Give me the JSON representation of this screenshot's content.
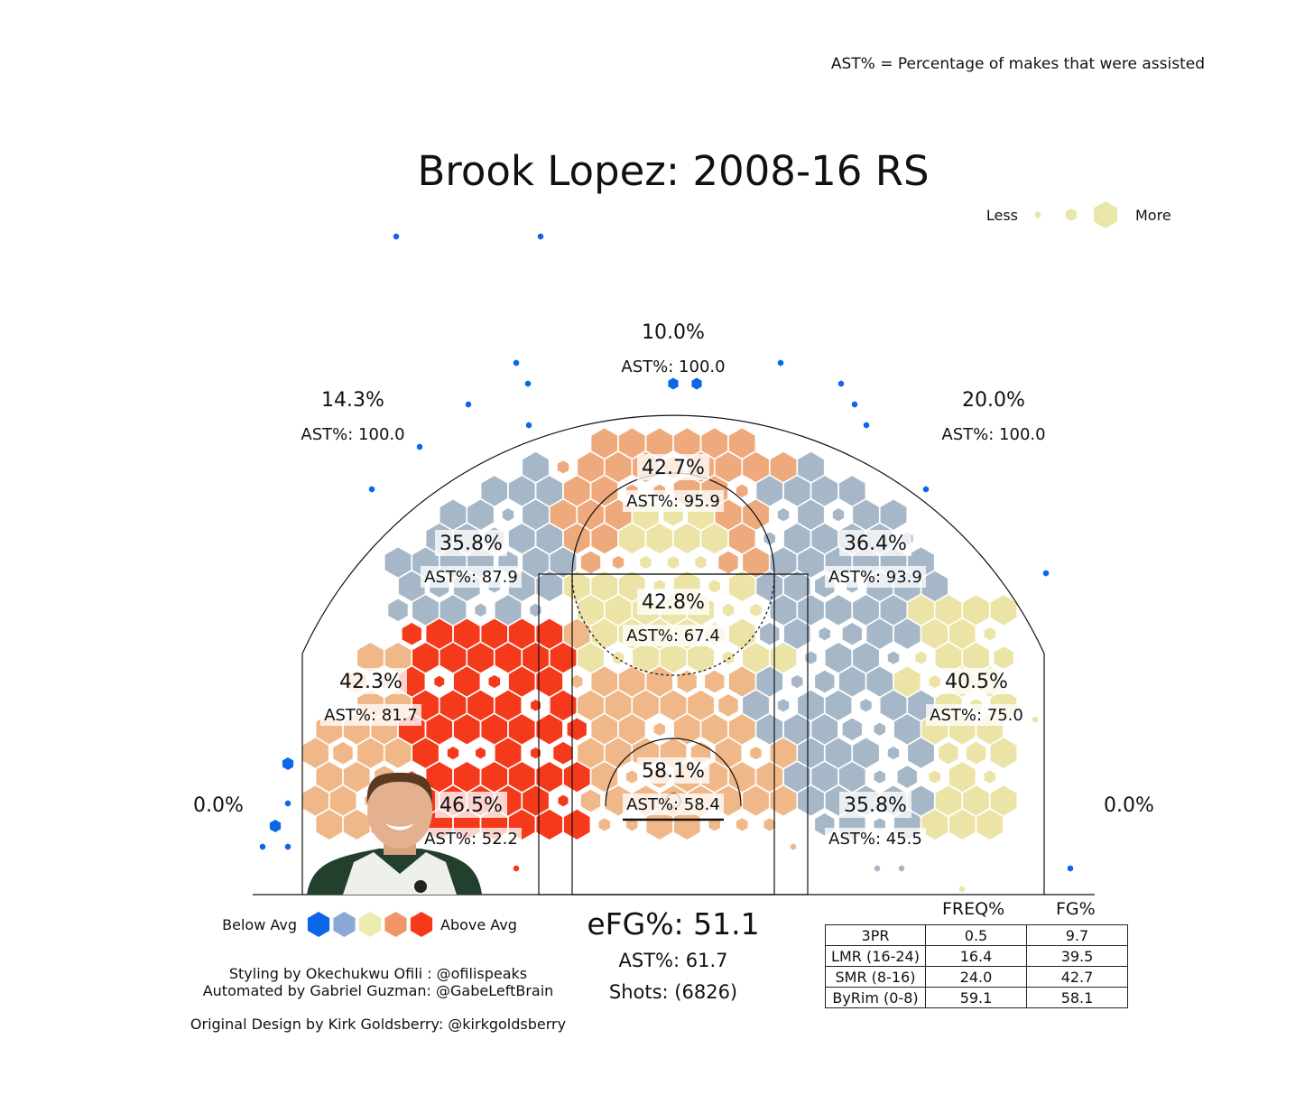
{
  "note": "AST% = Percentage of makes that were assisted",
  "title": "Brook Lopez: 2008-16 RS",
  "size_legend": {
    "less": "Less",
    "more": "More"
  },
  "color_legend": {
    "below": "Below Avg",
    "above": "Above Avg",
    "colors": [
      "#0b66e8",
      "#8aa8d6",
      "#ecebb0",
      "#f0956a",
      "#f53a1c"
    ]
  },
  "chart_data": {
    "type": "heatmap",
    "description_source": "hexbin shot chart with zone labels",
    "zones": [
      {
        "id": "corner3-left",
        "fg": "0.0%",
        "ast": ""
      },
      {
        "id": "wing3-left",
        "fg": "14.3%",
        "ast": "AST%: 100.0"
      },
      {
        "id": "top3",
        "fg": "10.0%",
        "ast": "AST%: 100.0"
      },
      {
        "id": "wing3-right",
        "fg": "20.0%",
        "ast": "AST%: 100.0"
      },
      {
        "id": "corner3-right",
        "fg": "0.0%",
        "ast": ""
      },
      {
        "id": "long-top",
        "fg": "42.7%",
        "ast": "AST%: 95.9"
      },
      {
        "id": "long-left-wing",
        "fg": "35.8%",
        "ast": "AST%: 87.9"
      },
      {
        "id": "long-right-wing",
        "fg": "36.4%",
        "ast": "AST%: 93.9"
      },
      {
        "id": "mid-center",
        "fg": "42.8%",
        "ast": "AST%: 67.4"
      },
      {
        "id": "long-left-base",
        "fg": "42.3%",
        "ast": "AST%: 81.7"
      },
      {
        "id": "long-right-base",
        "fg": "40.5%",
        "ast": "AST%: 75.0"
      },
      {
        "id": "rim",
        "fg": "58.1%",
        "ast": "AST%: 58.4"
      },
      {
        "id": "short-left-base",
        "fg": "46.5%",
        "ast": "AST%: 52.2"
      },
      {
        "id": "short-right-base",
        "fg": "35.8%",
        "ast": "AST%: 45.5"
      }
    ]
  },
  "summary": {
    "efg": "eFG%: 51.1",
    "ast": "AST%: 61.7",
    "shots": "Shots: (6826)"
  },
  "credits": {
    "line1": "Styling by Okechukwu Ofili : @ofilispeaks",
    "line2": "Automated by Gabriel Guzman: @GabeLeftBrain",
    "line3": "Original Design by Kirk Goldsberry: @kirkgoldsberry"
  },
  "table": {
    "headers": [
      "FREQ%",
      "FG%"
    ],
    "rows": [
      {
        "zone": "3PR",
        "freq": "0.5",
        "fg": "9.7"
      },
      {
        "zone": "LMR (16-24)",
        "freq": "16.4",
        "fg": "39.5"
      },
      {
        "zone": "SMR (8-16)",
        "freq": "24.0",
        "fg": "42.7"
      },
      {
        "zone": "ByRim (0-8)",
        "freq": "59.1",
        "fg": "58.1"
      }
    ]
  }
}
